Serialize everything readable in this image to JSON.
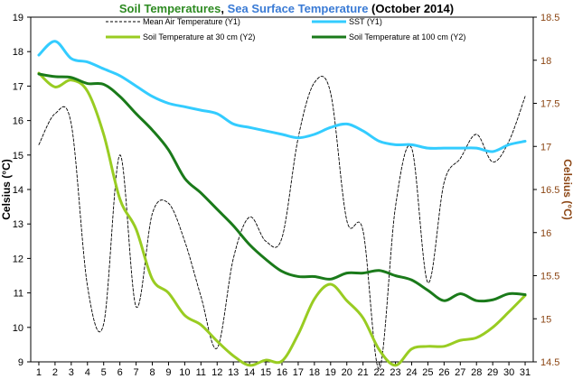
{
  "chart_data": {
    "type": "line",
    "title_parts": [
      {
        "text": "Soil Temperatures",
        "color": "#2E8B22"
      },
      {
        "text": ", ",
        "color": "#000000"
      },
      {
        "text": "Sea Surface Temperature",
        "color": "#3A7BD5"
      },
      {
        "text": " (October 2014)",
        "color": "#000000"
      }
    ],
    "ylabel": "Celsius (°C)",
    "y2label": "Celsius (°C)",
    "y2label_color": "#8B4513",
    "ylim": [
      9,
      19
    ],
    "y2lim": [
      14.5,
      18.5
    ],
    "yticks": [
      9,
      10,
      11,
      12,
      13,
      14,
      15,
      16,
      17,
      18,
      19
    ],
    "y2ticks": [
      "14.5",
      "15",
      "15.5",
      "16",
      "16.5",
      "17",
      "17.5",
      "18",
      "18.5"
    ],
    "x": [
      1,
      2,
      3,
      4,
      5,
      6,
      7,
      8,
      9,
      10,
      11,
      12,
      13,
      14,
      15,
      16,
      17,
      18,
      19,
      20,
      21,
      22,
      23,
      24,
      25,
      26,
      27,
      28,
      29,
      30,
      31
    ],
    "xlim": [
      0.5,
      31.5
    ],
    "grid": false,
    "legend_placement": "top",
    "series": [
      {
        "name": "Mean Air Temperature (Y1)",
        "axis": "y1",
        "color": "#000000",
        "style": "dashed",
        "width": 0.9,
        "values": [
          15.3,
          16.2,
          15.9,
          11.2,
          10.1,
          15.0,
          10.6,
          13.3,
          13.6,
          12.5,
          10.9,
          9.4,
          12.0,
          13.2,
          12.5,
          12.6,
          15.5,
          17.1,
          16.8,
          13.1,
          12.8,
          8.8,
          13.5,
          15.2,
          11.3,
          14.2,
          14.9,
          15.6,
          14.8,
          15.4,
          16.7
        ]
      },
      {
        "name": "SST (Y1)",
        "axis": "y1",
        "color": "#33CCFF",
        "style": "solid",
        "width": 3,
        "values": [
          17.9,
          18.3,
          17.8,
          17.7,
          17.5,
          17.3,
          17.0,
          16.7,
          16.5,
          16.4,
          16.3,
          16.2,
          15.9,
          15.8,
          15.7,
          15.6,
          15.5,
          15.6,
          15.8,
          15.9,
          15.7,
          15.4,
          15.3,
          15.3,
          15.2,
          15.2,
          15.2,
          15.2,
          15.1,
          15.3,
          15.4
        ]
      },
      {
        "name": "Soil Temperature at 30 cm (Y2)",
        "axis": "y2",
        "color": "#99CC22",
        "style": "solid",
        "width": 3,
        "values": [
          17.85,
          17.69,
          17.77,
          17.64,
          17.14,
          16.39,
          16.04,
          15.46,
          15.3,
          15.04,
          14.93,
          14.74,
          14.57,
          14.46,
          14.52,
          14.51,
          14.82,
          15.23,
          15.4,
          15.21,
          15.01,
          14.64,
          14.46,
          14.65,
          14.68,
          14.68,
          14.75,
          14.78,
          14.9,
          15.08,
          15.27
        ]
      },
      {
        "name": "Soil Temperature at 100 cm (Y2)",
        "axis": "y2",
        "color": "#1A7A1A",
        "style": "solid",
        "width": 3,
        "values": [
          17.84,
          17.81,
          17.8,
          17.73,
          17.72,
          17.58,
          17.38,
          17.19,
          16.96,
          16.63,
          16.46,
          16.27,
          16.08,
          15.86,
          15.69,
          15.55,
          15.49,
          15.49,
          15.46,
          15.53,
          15.53,
          15.56,
          15.5,
          15.45,
          15.33,
          15.21,
          15.29,
          15.21,
          15.22,
          15.29,
          15.28
        ]
      }
    ]
  }
}
